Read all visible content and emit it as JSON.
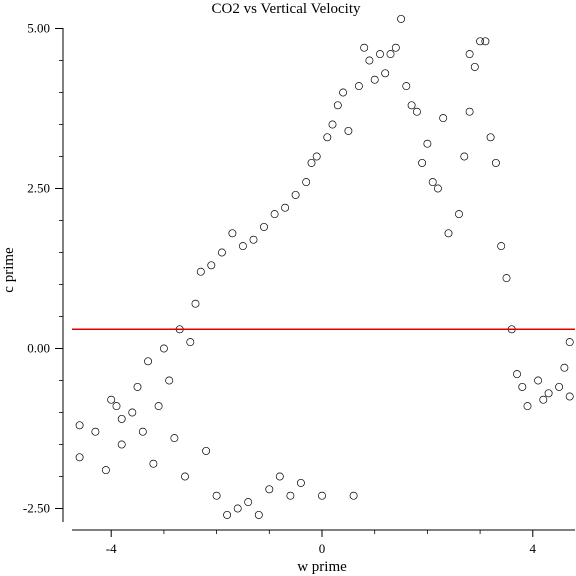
{
  "chart_data": {
    "type": "scatter",
    "title": "CO2 vs Vertical Velocity",
    "xlabel": "w prime",
    "ylabel": "c prime",
    "xlim": [
      -4.7,
      4.7
    ],
    "ylim": [
      -2.75,
      5.15
    ],
    "x_ticks": [
      -4,
      0,
      4
    ],
    "x_tick_labels": [
      "-4",
      "0",
      "4"
    ],
    "y_ticks": [
      -2.5,
      0,
      2.5,
      5
    ],
    "y_tick_labels": [
      "-2.50",
      "0.00",
      "2.50",
      "5.00"
    ],
    "grid": false,
    "legend": "none",
    "marker": "open-circle",
    "marker_color": "#000000",
    "reference_line": {
      "orientation": "horizontal",
      "y": 0.3,
      "color": "#dd0000"
    },
    "series": [
      {
        "points": [
          [
            -4.6,
            -1.2
          ],
          [
            -4.6,
            -1.7
          ],
          [
            -4.3,
            -1.3
          ],
          [
            -4.1,
            -1.9
          ],
          [
            -4.0,
            -0.8
          ],
          [
            -3.9,
            -0.9
          ],
          [
            -3.8,
            -1.5
          ],
          [
            -3.8,
            -1.1
          ],
          [
            -3.6,
            -1.0
          ],
          [
            -3.5,
            -0.6
          ],
          [
            -3.4,
            -1.3
          ],
          [
            -3.3,
            -0.2
          ],
          [
            -3.2,
            -1.8
          ],
          [
            -3.1,
            -0.9
          ],
          [
            -3.0,
            0.0
          ],
          [
            -2.9,
            -0.5
          ],
          [
            -2.8,
            -1.4
          ],
          [
            -2.7,
            0.3
          ],
          [
            -2.6,
            -2.0
          ],
          [
            -2.5,
            0.1
          ],
          [
            -2.4,
            0.7
          ],
          [
            -2.3,
            1.2
          ],
          [
            -2.2,
            -1.6
          ],
          [
            -2.1,
            1.3
          ],
          [
            -2.0,
            -2.3
          ],
          [
            -1.9,
            1.5
          ],
          [
            -1.8,
            -2.6
          ],
          [
            -1.7,
            1.8
          ],
          [
            -1.6,
            -2.5
          ],
          [
            -1.5,
            1.6
          ],
          [
            -1.4,
            -2.4
          ],
          [
            -1.3,
            1.7
          ],
          [
            -1.2,
            -2.6
          ],
          [
            -1.1,
            1.9
          ],
          [
            -1.0,
            -2.2
          ],
          [
            -0.9,
            2.1
          ],
          [
            -0.8,
            -2.0
          ],
          [
            -0.7,
            2.2
          ],
          [
            -0.6,
            -2.3
          ],
          [
            -0.5,
            2.4
          ],
          [
            -0.4,
            -2.1
          ],
          [
            -0.3,
            2.6
          ],
          [
            -0.2,
            2.9
          ],
          [
            -0.1,
            3.0
          ],
          [
            0.0,
            -2.3
          ],
          [
            0.1,
            3.3
          ],
          [
            0.2,
            3.5
          ],
          [
            0.3,
            3.8
          ],
          [
            0.4,
            4.0
          ],
          [
            0.5,
            3.4
          ],
          [
            0.6,
            -2.3
          ],
          [
            0.7,
            4.1
          ],
          [
            0.8,
            4.7
          ],
          [
            0.9,
            4.5
          ],
          [
            1.0,
            4.2
          ],
          [
            1.1,
            4.6
          ],
          [
            1.2,
            4.3
          ],
          [
            1.3,
            4.6
          ],
          [
            1.4,
            4.7
          ],
          [
            1.5,
            5.15
          ],
          [
            1.6,
            4.1
          ],
          [
            1.7,
            3.8
          ],
          [
            1.8,
            3.7
          ],
          [
            1.9,
            2.9
          ],
          [
            2.0,
            3.2
          ],
          [
            2.1,
            2.6
          ],
          [
            2.2,
            2.5
          ],
          [
            2.3,
            3.6
          ],
          [
            2.4,
            1.8
          ],
          [
            2.6,
            2.1
          ],
          [
            2.7,
            3.0
          ],
          [
            2.8,
            3.7
          ],
          [
            2.8,
            4.6
          ],
          [
            2.9,
            4.4
          ],
          [
            3.0,
            4.8
          ],
          [
            3.1,
            4.8
          ],
          [
            3.2,
            3.3
          ],
          [
            3.3,
            2.9
          ],
          [
            3.4,
            1.6
          ],
          [
            3.5,
            1.1
          ],
          [
            3.6,
            0.3
          ],
          [
            3.7,
            -0.4
          ],
          [
            3.8,
            -0.6
          ],
          [
            3.9,
            -0.9
          ],
          [
            4.1,
            -0.5
          ],
          [
            4.2,
            -0.8
          ],
          [
            4.3,
            -0.7
          ],
          [
            4.5,
            -0.6
          ],
          [
            4.6,
            -0.3
          ],
          [
            4.7,
            0.1
          ],
          [
            4.7,
            -0.75
          ]
        ]
      }
    ]
  }
}
